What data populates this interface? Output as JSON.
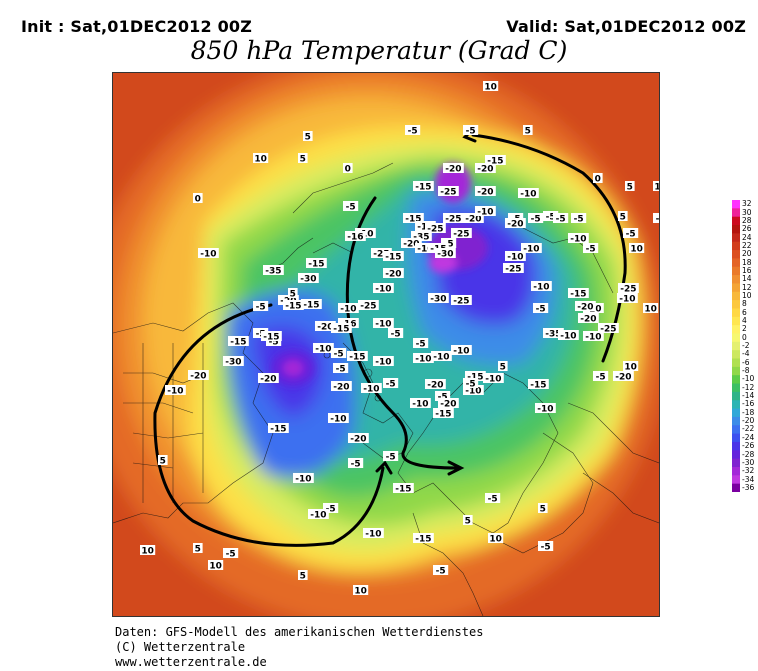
{
  "header": {
    "init": "Init : Sat,01DEC2012 00Z",
    "valid": "Valid: Sat,01DEC2012 00Z",
    "title": "850 hPa Temperatur (Grad C)"
  },
  "legend": {
    "labels": [
      "32",
      "30",
      "28",
      "26",
      "24",
      "22",
      "20",
      "18",
      "16",
      "14",
      "12",
      "10",
      "8",
      "6",
      "4",
      "2",
      "0",
      "-2",
      "-4",
      "-6",
      "-8",
      "-10",
      "-12",
      "-14",
      "-16",
      "-18",
      "-20",
      "-22",
      "-24",
      "-26",
      "-28",
      "-30",
      "-32",
      "-34",
      "-36"
    ],
    "colors": [
      "#ff33ff",
      "#ee2299",
      "#cc0a1e",
      "#b4140e",
      "#c4281a",
      "#d23c1c",
      "#dc5020",
      "#e46426",
      "#ea7a2a",
      "#f09032",
      "#f4a436",
      "#f8b83c",
      "#fcc83e",
      "#ffd844",
      "#ffe650",
      "#fff266",
      "#f6f870",
      "#e4f070",
      "#cce860",
      "#b0e050",
      "#90d848",
      "#5ccc48",
      "#3cc064",
      "#30b488",
      "#2cb4b4",
      "#30a8d8",
      "#3c8ce8",
      "#3c70f0",
      "#3c50f0",
      "#4a34e8",
      "#6422dc",
      "#8022d0",
      "#a428d8",
      "#c038e0",
      "#7a00a0"
    ]
  },
  "map": {
    "isotherm_labels": [
      "10",
      "-5",
      "-5",
      "5",
      "10",
      "5",
      "-20",
      "-20",
      "-15",
      "10",
      "5",
      "0",
      "-15",
      "-25",
      "-20",
      "-10",
      "-5",
      "5",
      "0",
      "-5",
      "-5",
      "-15",
      "-25",
      "-20",
      "-10",
      "-5",
      "-5",
      "-5",
      "5",
      "0",
      "-10",
      "-10",
      "-16",
      "-35",
      "-25",
      "-25",
      "-5",
      "-20",
      "-10",
      "-15",
      "-10",
      "-30",
      "-25",
      "-15",
      "-20",
      "-10",
      "-5",
      "-5",
      "-10",
      "-15",
      "-35",
      "-30",
      "-20",
      "-15",
      "-10",
      "-20",
      "-25",
      "-30",
      "-20",
      "-25",
      "-10",
      "-5",
      "-15",
      "-10",
      "-5",
      "5",
      "-15",
      "-5",
      "-10",
      "-15",
      "-10",
      "-20",
      "-35",
      "-25",
      "-10",
      "-5",
      "-10",
      "-25",
      "-20",
      "-25",
      "-20",
      "-20",
      "-10",
      "-30",
      "-5",
      "-20",
      "-15",
      "-20",
      "-5",
      "-10",
      "-5",
      "-10",
      "-15",
      "-10",
      "-10",
      "-20",
      "-10",
      "-15",
      "5",
      "-15",
      "-10",
      "-10",
      "-5",
      "-20",
      "-15",
      "-5",
      "-10",
      "-15",
      "-10",
      "-5",
      "-5",
      "-10",
      "-16",
      "-15",
      "-5",
      "-10",
      "-10",
      "-5",
      "-5",
      "-15",
      "-20",
      "-10",
      "-5",
      "-10",
      "-10",
      "-5",
      "5",
      "-15",
      "-5",
      "5",
      "10",
      "-5",
      "10",
      "-10",
      "-5",
      "10",
      "5",
      "10",
      "-5",
      "5",
      "10",
      "10",
      "10",
      "5",
      "5",
      "10",
      "5"
    ]
  },
  "footer": {
    "line1": "Daten: GFS-Modell des amerikanischen Wetterdienstes",
    "line2": "(C) Wetterzentrale",
    "line3": "www.wetterzentrale.de"
  }
}
